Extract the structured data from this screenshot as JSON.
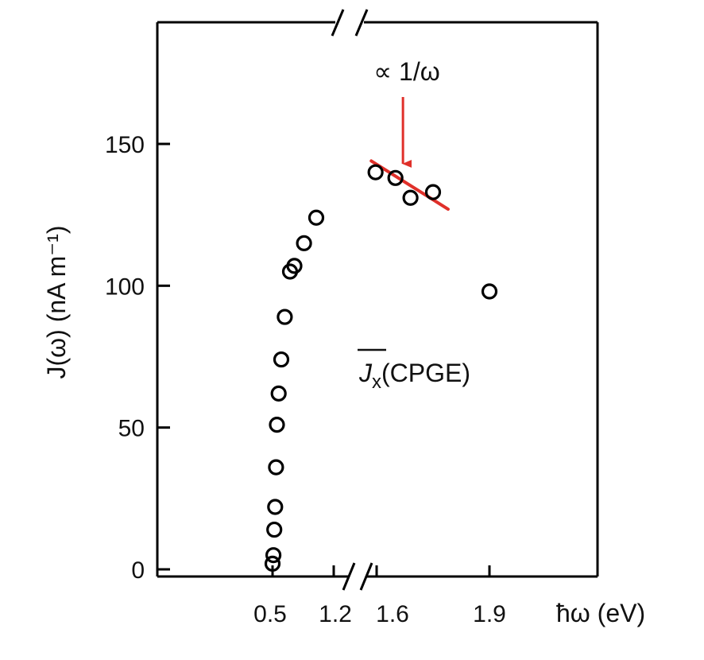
{
  "chart_data": {
    "type": "scatter",
    "title": "",
    "ylabel": "J(ω) (nA m⁻¹)",
    "xlabel": "ħω (eV)",
    "ylim": [
      0,
      190
    ],
    "y_ticks": [
      0,
      50,
      100,
      150
    ],
    "x_tick_labels": [
      "0.5",
      "1.2",
      "1.6",
      "1.9"
    ],
    "x_axis_broken": true,
    "series": [
      {
        "name": "J̄x(CPGE)",
        "points": [
          {
            "x": 0.5,
            "y": 2
          },
          {
            "x": 0.51,
            "y": 5
          },
          {
            "x": 0.52,
            "y": 14
          },
          {
            "x": 0.53,
            "y": 22
          },
          {
            "x": 0.54,
            "y": 36
          },
          {
            "x": 0.55,
            "y": 51
          },
          {
            "x": 0.57,
            "y": 62
          },
          {
            "x": 0.6,
            "y": 74
          },
          {
            "x": 0.64,
            "y": 89
          },
          {
            "x": 0.7,
            "y": 105
          },
          {
            "x": 0.75,
            "y": 107
          },
          {
            "x": 0.86,
            "y": 115
          },
          {
            "x": 1.0,
            "y": 124
          },
          {
            "x": 1.59,
            "y": 140
          },
          {
            "x": 1.65,
            "y": 138
          },
          {
            "x": 1.69,
            "y": 131
          },
          {
            "x": 1.75,
            "y": 133
          },
          {
            "x": 1.9,
            "y": 98
          }
        ]
      }
    ],
    "fit_line": {
      "label": "∝ 1/ω",
      "color": "#e0302a",
      "x": [
        1.55,
        1.79
      ],
      "y": [
        144,
        127
      ]
    },
    "annotation": {
      "label": "∝ 1/ω",
      "arrow_to": {
        "x": 1.67,
        "y": 143
      }
    }
  },
  "labels": {
    "series_symbol": "J",
    "series_subscript": "x",
    "series_suffix": "(CPGE)"
  }
}
